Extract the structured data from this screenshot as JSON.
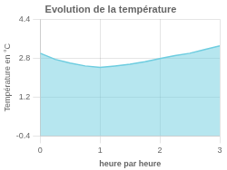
{
  "chart_data": {
    "type": "area",
    "title": "Evolution de la température",
    "xlabel": "heure par heure",
    "ylabel": "Température en °C",
    "x": [
      0,
      0.25,
      0.5,
      0.75,
      1.0,
      1.25,
      1.5,
      1.75,
      2.0,
      2.25,
      2.5,
      2.75,
      3.0
    ],
    "values": [
      3.0,
      2.75,
      2.6,
      2.48,
      2.42,
      2.48,
      2.55,
      2.65,
      2.78,
      2.9,
      3.0,
      3.15,
      3.3
    ],
    "color": "#6ecde0",
    "xlim": [
      0,
      3
    ],
    "ylim": [
      -0.4,
      4.4
    ],
    "xticks": [
      0,
      1,
      2,
      3
    ],
    "yticks": [
      -0.4,
      1.2,
      2.8,
      4.4
    ],
    "grid": true
  }
}
